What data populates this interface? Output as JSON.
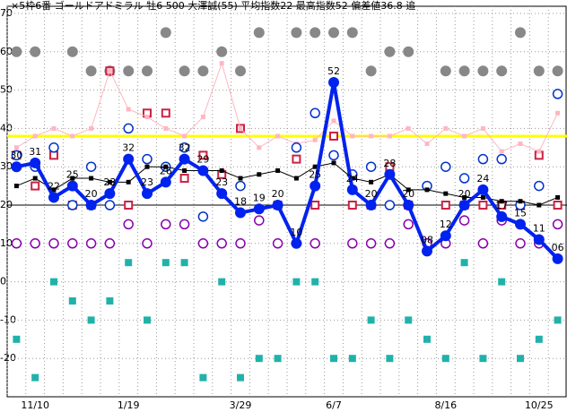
{
  "chart_data": {
    "type": "line",
    "title": "×5枠6番 ゴールドアドミラル 牡6 500 大澤誠(55) 平均指数22 最高指数52 偏差値36.8 追",
    "categories": [
      null,
      "11/10",
      null,
      null,
      null,
      null,
      "1/19",
      null,
      null,
      null,
      null,
      null,
      "3/29",
      null,
      null,
      null,
      null,
      "6/7",
      null,
      null,
      null,
      null,
      null,
      "8/16",
      null,
      null,
      null,
      null,
      "10/25",
      null
    ],
    "ylim": [
      -30,
      70
    ],
    "yticks": [
      -20,
      -10,
      0,
      10,
      20,
      30,
      40,
      50,
      60,
      70
    ],
    "grid": true,
    "hlines": [
      {
        "value": 38,
        "color": "#ffff00"
      },
      {
        "value": 20,
        "color": "#000000"
      }
    ],
    "series": [
      {
        "color": "#888888",
        "marker": "dot",
        "line": false,
        "values": [
          60,
          60,
          null,
          60,
          55,
          55,
          55,
          55,
          65,
          55,
          55,
          60,
          55,
          65,
          null,
          65,
          65,
          65,
          65,
          55,
          60,
          60,
          null,
          55,
          55,
          55,
          55,
          65,
          55,
          55
        ]
      },
      {
        "color": "#20b2aa",
        "marker": "square",
        "line": false,
        "values": [
          -15,
          -25,
          0,
          -5,
          -10,
          -5,
          5,
          -10,
          5,
          5,
          -25,
          0,
          -25,
          -20,
          -20,
          0,
          0,
          -20,
          -20,
          -10,
          -20,
          -10,
          -15,
          -20,
          5,
          -20,
          0,
          -20,
          -15,
          -10
        ]
      },
      {
        "color": "#8800aa",
        "marker": "open-circle",
        "line": false,
        "values": [
          10,
          10,
          10,
          10,
          10,
          10,
          15,
          10,
          15,
          15,
          10,
          10,
          10,
          16,
          10,
          10,
          10,
          null,
          10,
          10,
          10,
          15,
          10,
          10,
          16,
          10,
          16,
          10,
          10,
          15
        ]
      },
      {
        "color": "#cc2244",
        "marker": "open-square",
        "line": false,
        "values": [
          33,
          25,
          33,
          20,
          20,
          55,
          20,
          44,
          44,
          27,
          33,
          28,
          40,
          null,
          20,
          32,
          20,
          38,
          20,
          20,
          30,
          20,
          null,
          20,
          20,
          20,
          20,
          20,
          33,
          20
        ]
      },
      {
        "color": "#ffb6c1",
        "marker": "small-square",
        "line": true,
        "values": [
          35,
          38,
          40,
          38,
          40,
          55,
          45,
          43,
          40,
          38,
          43,
          57,
          40,
          35,
          38,
          36,
          37,
          42,
          38,
          38,
          38,
          40,
          36,
          40,
          38,
          40,
          34,
          36,
          34,
          44
        ]
      },
      {
        "color": "#0033cc",
        "marker": "open-circle",
        "line": false,
        "values": [
          33,
          30,
          35,
          20,
          30,
          20,
          40,
          32,
          30,
          35,
          17,
          23,
          25,
          null,
          null,
          35,
          44,
          33,
          28,
          30,
          20,
          20,
          25,
          30,
          27,
          32,
          32,
          20,
          25,
          49
        ]
      },
      {
        "color": "#000000",
        "marker": "small-square",
        "line": true,
        "values": [
          25,
          27,
          24,
          27,
          27,
          26,
          26,
          30,
          30,
          29,
          29,
          29,
          27,
          28,
          29,
          27,
          30,
          31,
          27,
          26,
          28,
          24,
          24,
          23,
          22,
          22,
          21,
          21,
          20,
          22
        ]
      },
      {
        "color": "#0022ee",
        "marker": "dot",
        "line": true,
        "thick": true,
        "values": [
          30,
          31,
          22,
          25,
          20,
          23,
          32,
          23,
          26,
          32,
          29,
          23,
          18,
          19,
          20,
          10,
          25,
          52,
          24,
          20,
          28,
          20,
          8,
          12,
          20,
          24,
          17,
          15,
          11,
          6
        ],
        "value_labels": [
          "30",
          "31",
          "22",
          "25",
          "20",
          "23",
          "32",
          "23",
          "26",
          "32",
          "29",
          "23",
          "18",
          "19",
          "20",
          "10",
          "25",
          "52",
          "24",
          "20",
          "28",
          "20",
          "08",
          "12",
          "20",
          "24",
          "17",
          "15",
          "11",
          "06"
        ]
      }
    ]
  }
}
